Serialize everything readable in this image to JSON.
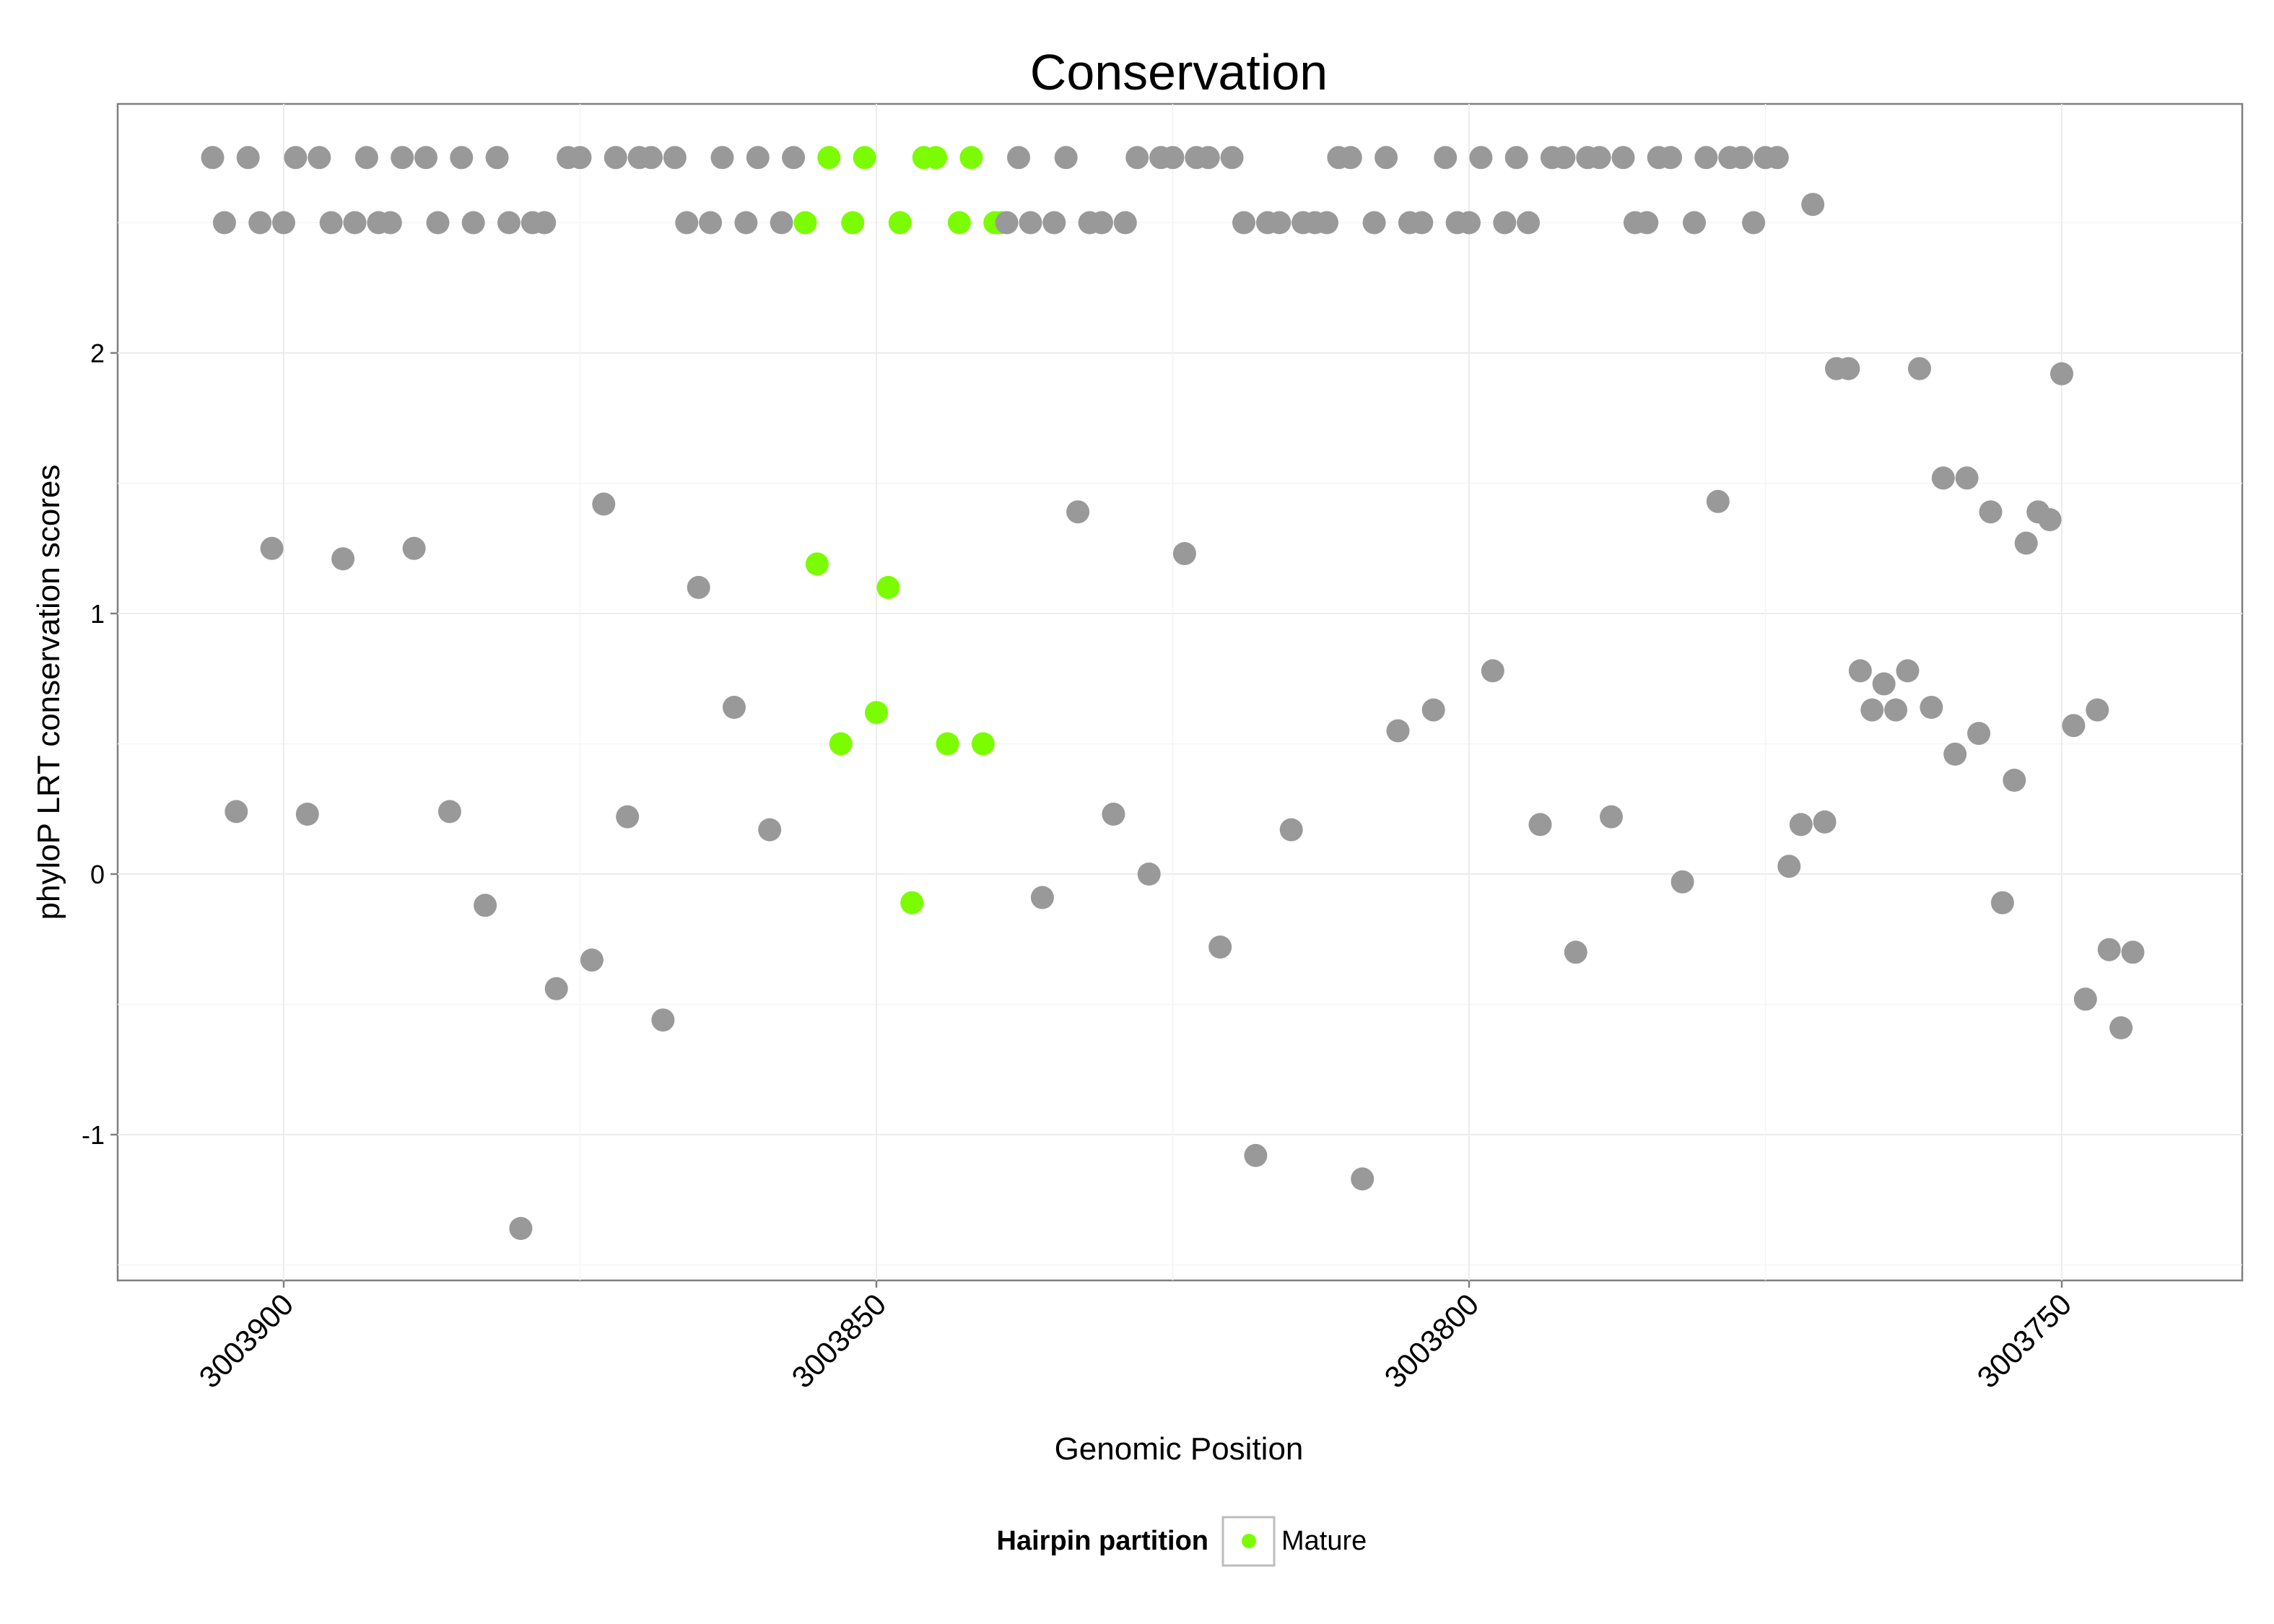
{
  "chart_data": {
    "type": "scatter",
    "title": "Conservation",
    "xlabel": "Genomic Position",
    "ylabel": "phyloP LRT conservation scores",
    "x_reversed": true,
    "xlim": [
      3003914,
      3003735
    ],
    "ylim": [
      -1.5,
      2.9
    ],
    "x_ticks": [
      3003900,
      3003850,
      3003800,
      3003750
    ],
    "x_tick_labels": [
      "3003900",
      "3003850",
      "3003800",
      "3003750"
    ],
    "y_ticks": [
      -1,
      0,
      1,
      2
    ],
    "y_tick_labels": [
      "-1",
      "0",
      "1",
      "2"
    ],
    "grid": true,
    "legend": {
      "title": "Hairpin partition",
      "entries": [
        "Mature"
      ],
      "placement": "bottom"
    },
    "colors": {
      "Other": "#999999",
      "Mature": "#7cfc00"
    },
    "points": [
      {
        "x": 3003906,
        "y": 2.75,
        "g": "Other"
      },
      {
        "x": 3003905,
        "y": 2.5,
        "g": "Other"
      },
      {
        "x": 3003904,
        "y": 0.24,
        "g": "Other"
      },
      {
        "x": 3003903,
        "y": 2.75,
        "g": "Other"
      },
      {
        "x": 3003902,
        "y": 2.5,
        "g": "Other"
      },
      {
        "x": 3003901,
        "y": 1.25,
        "g": "Other"
      },
      {
        "x": 3003900,
        "y": 2.5,
        "g": "Other"
      },
      {
        "x": 3003899,
        "y": 2.75,
        "g": "Other"
      },
      {
        "x": 3003898,
        "y": 0.23,
        "g": "Other"
      },
      {
        "x": 3003897,
        "y": 2.75,
        "g": "Other"
      },
      {
        "x": 3003896,
        "y": 2.5,
        "g": "Other"
      },
      {
        "x": 3003895,
        "y": 1.21,
        "g": "Other"
      },
      {
        "x": 3003894,
        "y": 2.5,
        "g": "Other"
      },
      {
        "x": 3003893,
        "y": 2.75,
        "g": "Other"
      },
      {
        "x": 3003892,
        "y": 2.5,
        "g": "Other"
      },
      {
        "x": 3003891,
        "y": 2.5,
        "g": "Other"
      },
      {
        "x": 3003890,
        "y": 2.75,
        "g": "Other"
      },
      {
        "x": 3003889,
        "y": 1.25,
        "g": "Other"
      },
      {
        "x": 3003888,
        "y": 2.75,
        "g": "Other"
      },
      {
        "x": 3003887,
        "y": 2.5,
        "g": "Other"
      },
      {
        "x": 3003886,
        "y": 0.24,
        "g": "Other"
      },
      {
        "x": 3003885,
        "y": 2.75,
        "g": "Other"
      },
      {
        "x": 3003884,
        "y": 2.5,
        "g": "Other"
      },
      {
        "x": 3003883,
        "y": -0.12,
        "g": "Other"
      },
      {
        "x": 3003882,
        "y": 2.75,
        "g": "Other"
      },
      {
        "x": 3003881,
        "y": 2.5,
        "g": "Other"
      },
      {
        "x": 3003880,
        "y": -1.36,
        "g": "Other"
      },
      {
        "x": 3003879,
        "y": 2.5,
        "g": "Other"
      },
      {
        "x": 3003878,
        "y": 2.5,
        "g": "Other"
      },
      {
        "x": 3003877,
        "y": -0.44,
        "g": "Other"
      },
      {
        "x": 3003876,
        "y": 2.75,
        "g": "Other"
      },
      {
        "x": 3003875,
        "y": 2.75,
        "g": "Other"
      },
      {
        "x": 3003874,
        "y": -0.33,
        "g": "Other"
      },
      {
        "x": 3003873,
        "y": 1.42,
        "g": "Other"
      },
      {
        "x": 3003872,
        "y": 2.75,
        "g": "Other"
      },
      {
        "x": 3003871,
        "y": 0.22,
        "g": "Other"
      },
      {
        "x": 3003870,
        "y": 2.75,
        "g": "Other"
      },
      {
        "x": 3003869,
        "y": 2.75,
        "g": "Other"
      },
      {
        "x": 3003868,
        "y": -0.56,
        "g": "Other"
      },
      {
        "x": 3003867,
        "y": 2.75,
        "g": "Other"
      },
      {
        "x": 3003866,
        "y": 2.5,
        "g": "Other"
      },
      {
        "x": 3003865,
        "y": 1.1,
        "g": "Other"
      },
      {
        "x": 3003864,
        "y": 2.5,
        "g": "Other"
      },
      {
        "x": 3003863,
        "y": 2.75,
        "g": "Other"
      },
      {
        "x": 3003862,
        "y": 0.64,
        "g": "Other"
      },
      {
        "x": 3003861,
        "y": 2.5,
        "g": "Other"
      },
      {
        "x": 3003860,
        "y": 2.75,
        "g": "Other"
      },
      {
        "x": 3003859,
        "y": 0.17,
        "g": "Other"
      },
      {
        "x": 3003858,
        "y": 2.5,
        "g": "Other"
      },
      {
        "x": 3003857,
        "y": 2.75,
        "g": "Other"
      },
      {
        "x": 3003856,
        "y": 2.5,
        "g": "Mature"
      },
      {
        "x": 3003855,
        "y": 1.19,
        "g": "Mature"
      },
      {
        "x": 3003854,
        "y": 2.75,
        "g": "Mature"
      },
      {
        "x": 3003853,
        "y": 0.5,
        "g": "Mature"
      },
      {
        "x": 3003852,
        "y": 2.5,
        "g": "Mature"
      },
      {
        "x": 3003851,
        "y": 2.75,
        "g": "Mature"
      },
      {
        "x": 3003850,
        "y": 0.62,
        "g": "Mature"
      },
      {
        "x": 3003849,
        "y": 1.1,
        "g": "Mature"
      },
      {
        "x": 3003848,
        "y": 2.5,
        "g": "Mature"
      },
      {
        "x": 3003847,
        "y": -0.11,
        "g": "Mature"
      },
      {
        "x": 3003846,
        "y": 2.75,
        "g": "Mature"
      },
      {
        "x": 3003845,
        "y": 2.75,
        "g": "Mature"
      },
      {
        "x": 3003844,
        "y": 0.5,
        "g": "Mature"
      },
      {
        "x": 3003843,
        "y": 2.5,
        "g": "Mature"
      },
      {
        "x": 3003842,
        "y": 2.75,
        "g": "Mature"
      },
      {
        "x": 3003841,
        "y": 0.5,
        "g": "Mature"
      },
      {
        "x": 3003840,
        "y": 2.5,
        "g": "Mature"
      },
      {
        "x": 3003839.5,
        "y": 2.5,
        "g": "Mature"
      },
      {
        "x": 3003839,
        "y": 2.5,
        "g": "Other"
      },
      {
        "x": 3003838,
        "y": 2.75,
        "g": "Other"
      },
      {
        "x": 3003837,
        "y": 2.5,
        "g": "Other"
      },
      {
        "x": 3003836,
        "y": -0.09,
        "g": "Other"
      },
      {
        "x": 3003835,
        "y": 2.5,
        "g": "Other"
      },
      {
        "x": 3003834,
        "y": 2.75,
        "g": "Other"
      },
      {
        "x": 3003833,
        "y": 1.39,
        "g": "Other"
      },
      {
        "x": 3003832,
        "y": 2.5,
        "g": "Other"
      },
      {
        "x": 3003831,
        "y": 2.5,
        "g": "Other"
      },
      {
        "x": 3003830,
        "y": 0.23,
        "g": "Other"
      },
      {
        "x": 3003829,
        "y": 2.5,
        "g": "Other"
      },
      {
        "x": 3003828,
        "y": 2.75,
        "g": "Other"
      },
      {
        "x": 3003827,
        "y": 0.0,
        "g": "Other"
      },
      {
        "x": 3003826,
        "y": 2.75,
        "g": "Other"
      },
      {
        "x": 3003825,
        "y": 2.75,
        "g": "Other"
      },
      {
        "x": 3003824,
        "y": 1.23,
        "g": "Other"
      },
      {
        "x": 3003823,
        "y": 2.75,
        "g": "Other"
      },
      {
        "x": 3003822,
        "y": 2.75,
        "g": "Other"
      },
      {
        "x": 3003821,
        "y": -0.28,
        "g": "Other"
      },
      {
        "x": 3003820,
        "y": 2.75,
        "g": "Other"
      },
      {
        "x": 3003819,
        "y": 2.5,
        "g": "Other"
      },
      {
        "x": 3003818,
        "y": -1.08,
        "g": "Other"
      },
      {
        "x": 3003817,
        "y": 2.5,
        "g": "Other"
      },
      {
        "x": 3003816,
        "y": 2.5,
        "g": "Other"
      },
      {
        "x": 3003815,
        "y": 0.17,
        "g": "Other"
      },
      {
        "x": 3003814,
        "y": 2.5,
        "g": "Other"
      },
      {
        "x": 3003813,
        "y": 2.5,
        "g": "Other"
      },
      {
        "x": 3003812,
        "y": 2.5,
        "g": "Other"
      },
      {
        "x": 3003811,
        "y": 2.75,
        "g": "Other"
      },
      {
        "x": 3003810,
        "y": 2.75,
        "g": "Other"
      },
      {
        "x": 3003809,
        "y": -1.17,
        "g": "Other"
      },
      {
        "x": 3003808,
        "y": 2.5,
        "g": "Other"
      },
      {
        "x": 3003807,
        "y": 2.75,
        "g": "Other"
      },
      {
        "x": 3003806,
        "y": 0.55,
        "g": "Other"
      },
      {
        "x": 3003805,
        "y": 2.5,
        "g": "Other"
      },
      {
        "x": 3003804,
        "y": 2.5,
        "g": "Other"
      },
      {
        "x": 3003803,
        "y": 0.63,
        "g": "Other"
      },
      {
        "x": 3003802,
        "y": 2.75,
        "g": "Other"
      },
      {
        "x": 3003801,
        "y": 2.5,
        "g": "Other"
      },
      {
        "x": 3003800,
        "y": 2.5,
        "g": "Other"
      },
      {
        "x": 3003799,
        "y": 2.75,
        "g": "Other"
      },
      {
        "x": 3003798,
        "y": 0.78,
        "g": "Other"
      },
      {
        "x": 3003797,
        "y": 2.5,
        "g": "Other"
      },
      {
        "x": 3003796,
        "y": 2.75,
        "g": "Other"
      },
      {
        "x": 3003795,
        "y": 2.5,
        "g": "Other"
      },
      {
        "x": 3003794,
        "y": 0.19,
        "g": "Other"
      },
      {
        "x": 3003793,
        "y": 2.75,
        "g": "Other"
      },
      {
        "x": 3003792,
        "y": 2.75,
        "g": "Other"
      },
      {
        "x": 3003791,
        "y": -0.3,
        "g": "Other"
      },
      {
        "x": 3003790,
        "y": 2.75,
        "g": "Other"
      },
      {
        "x": 3003789,
        "y": 2.75,
        "g": "Other"
      },
      {
        "x": 3003788,
        "y": 0.22,
        "g": "Other"
      },
      {
        "x": 3003787,
        "y": 2.75,
        "g": "Other"
      },
      {
        "x": 3003786,
        "y": 2.5,
        "g": "Other"
      },
      {
        "x": 3003785,
        "y": 2.5,
        "g": "Other"
      },
      {
        "x": 3003784,
        "y": 2.75,
        "g": "Other"
      },
      {
        "x": 3003783,
        "y": 2.75,
        "g": "Other"
      },
      {
        "x": 3003782,
        "y": -0.03,
        "g": "Other"
      },
      {
        "x": 3003781,
        "y": 2.5,
        "g": "Other"
      },
      {
        "x": 3003780,
        "y": 2.75,
        "g": "Other"
      },
      {
        "x": 3003779,
        "y": 1.43,
        "g": "Other"
      },
      {
        "x": 3003778,
        "y": 2.75,
        "g": "Other"
      },
      {
        "x": 3003777,
        "y": 2.75,
        "g": "Other"
      },
      {
        "x": 3003776,
        "y": 2.5,
        "g": "Other"
      },
      {
        "x": 3003775,
        "y": 2.75,
        "g": "Other"
      },
      {
        "x": 3003774,
        "y": 2.75,
        "g": "Other"
      },
      {
        "x": 3003773,
        "y": 0.03,
        "g": "Other"
      },
      {
        "x": 3003772,
        "y": 0.19,
        "g": "Other"
      },
      {
        "x": 3003771,
        "y": 2.57,
        "g": "Other"
      },
      {
        "x": 3003770,
        "y": 0.2,
        "g": "Other"
      },
      {
        "x": 3003769,
        "y": 1.94,
        "g": "Other"
      },
      {
        "x": 3003768,
        "y": 1.94,
        "g": "Other"
      },
      {
        "x": 3003767,
        "y": 0.78,
        "g": "Other"
      },
      {
        "x": 3003766,
        "y": 0.63,
        "g": "Other"
      },
      {
        "x": 3003765,
        "y": 0.73,
        "g": "Other"
      },
      {
        "x": 3003764,
        "y": 0.63,
        "g": "Other"
      },
      {
        "x": 3003763,
        "y": 0.78,
        "g": "Other"
      },
      {
        "x": 3003762,
        "y": 1.94,
        "g": "Other"
      },
      {
        "x": 3003761,
        "y": 0.64,
        "g": "Other"
      },
      {
        "x": 3003760,
        "y": 1.52,
        "g": "Other"
      },
      {
        "x": 3003759,
        "y": 0.46,
        "g": "Other"
      },
      {
        "x": 3003758,
        "y": 1.52,
        "g": "Other"
      },
      {
        "x": 3003757,
        "y": 0.54,
        "g": "Other"
      },
      {
        "x": 3003756,
        "y": 1.39,
        "g": "Other"
      },
      {
        "x": 3003755,
        "y": -0.11,
        "g": "Other"
      },
      {
        "x": 3003754,
        "y": 0.36,
        "g": "Other"
      },
      {
        "x": 3003753,
        "y": 1.27,
        "g": "Other"
      },
      {
        "x": 3003752,
        "y": 1.39,
        "g": "Other"
      },
      {
        "x": 3003751,
        "y": 1.36,
        "g": "Other"
      },
      {
        "x": 3003750,
        "y": 1.92,
        "g": "Other"
      },
      {
        "x": 3003749,
        "y": 0.57,
        "g": "Other"
      },
      {
        "x": 3003748,
        "y": -0.48,
        "g": "Other"
      },
      {
        "x": 3003747,
        "y": 0.63,
        "g": "Other"
      },
      {
        "x": 3003746,
        "y": -0.29,
        "g": "Other"
      },
      {
        "x": 3003745,
        "y": -0.59,
        "g": "Other"
      },
      {
        "x": 3003744,
        "y": -0.3,
        "g": "Other"
      }
    ]
  }
}
